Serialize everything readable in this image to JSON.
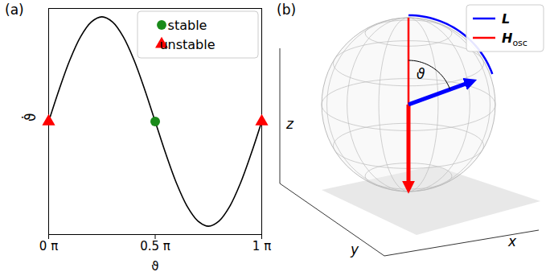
{
  "chart_data": {
    "type": "line",
    "panel": "(a)",
    "x_label": "ϑ",
    "y_label": "ϑ̇",
    "color": "#000000",
    "x": [
      0,
      0.05,
      0.1,
      0.15,
      0.2,
      0.25,
      0.3,
      0.35,
      0.4,
      0.45,
      0.5,
      0.55,
      0.6,
      0.65,
      0.7,
      0.75,
      0.8,
      0.85,
      0.9,
      0.95,
      1
    ],
    "values": [
      0,
      0.31,
      0.59,
      0.81,
      0.95,
      1,
      0.95,
      0.81,
      0.59,
      0.31,
      0,
      -0.31,
      -0.59,
      -0.81,
      -0.95,
      -1,
      -0.95,
      -0.81,
      -0.59,
      -0.31,
      0
    ],
    "series": [
      {
        "name": "stable",
        "type": "scatter",
        "marker": "circle",
        "color": "#1a8a1a",
        "x": [
          0.5
        ],
        "values": [
          0
        ]
      },
      {
        "name": "unstable",
        "type": "scatter",
        "marker": "triangle",
        "color": "#ff0000",
        "x": [
          0,
          1
        ],
        "values": [
          0,
          0
        ]
      }
    ],
    "xlim": [
      0,
      1
    ],
    "xticks": [
      {
        "value": 0,
        "label": "0 π"
      },
      {
        "value": 0.5,
        "label": "0.5 π"
      },
      {
        "value": 1,
        "label": "1 π"
      }
    ],
    "ylim": [
      -1.08,
      1.08
    ],
    "tick_labels": "x",
    "legend": "top-right"
  },
  "diagram": {
    "panel": "(b)",
    "angle_label": "ϑ",
    "axis_labels": {
      "x": "x",
      "y": "y",
      "z": "z"
    },
    "legend": [
      {
        "symbol": "L",
        "color": "#0000ff"
      },
      {
        "symbol": "H",
        "subscript": "osc",
        "color": "#ff0000"
      }
    ]
  }
}
